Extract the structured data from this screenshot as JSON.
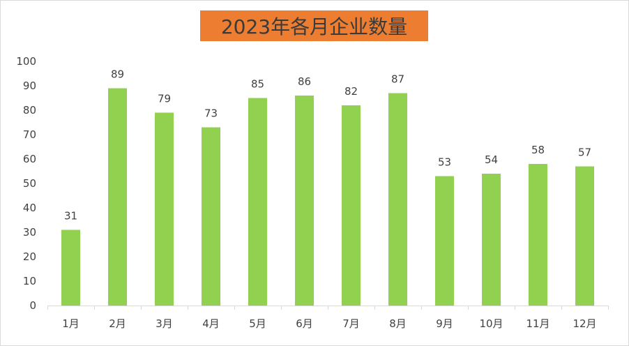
{
  "chart_data": {
    "type": "bar",
    "title": "2023年各月企业数量",
    "categories": [
      "1月",
      "2月",
      "3月",
      "4月",
      "5月",
      "6月",
      "7月",
      "8月",
      "9月",
      "10月",
      "11月",
      "12月"
    ],
    "values": [
      31,
      89,
      79,
      73,
      85,
      86,
      82,
      87,
      53,
      54,
      58,
      57
    ],
    "ylim": [
      0,
      100
    ],
    "yticks": [
      0,
      10,
      20,
      30,
      40,
      50,
      60,
      70,
      80,
      90,
      100
    ],
    "xlabel": "",
    "ylabel": "",
    "grid": false,
    "legend": "none",
    "data_labels": true
  },
  "colors": {
    "bar": "#92d050",
    "title_background": "#ed7d31",
    "axis": "#d9d9d9",
    "text": "#404040"
  }
}
